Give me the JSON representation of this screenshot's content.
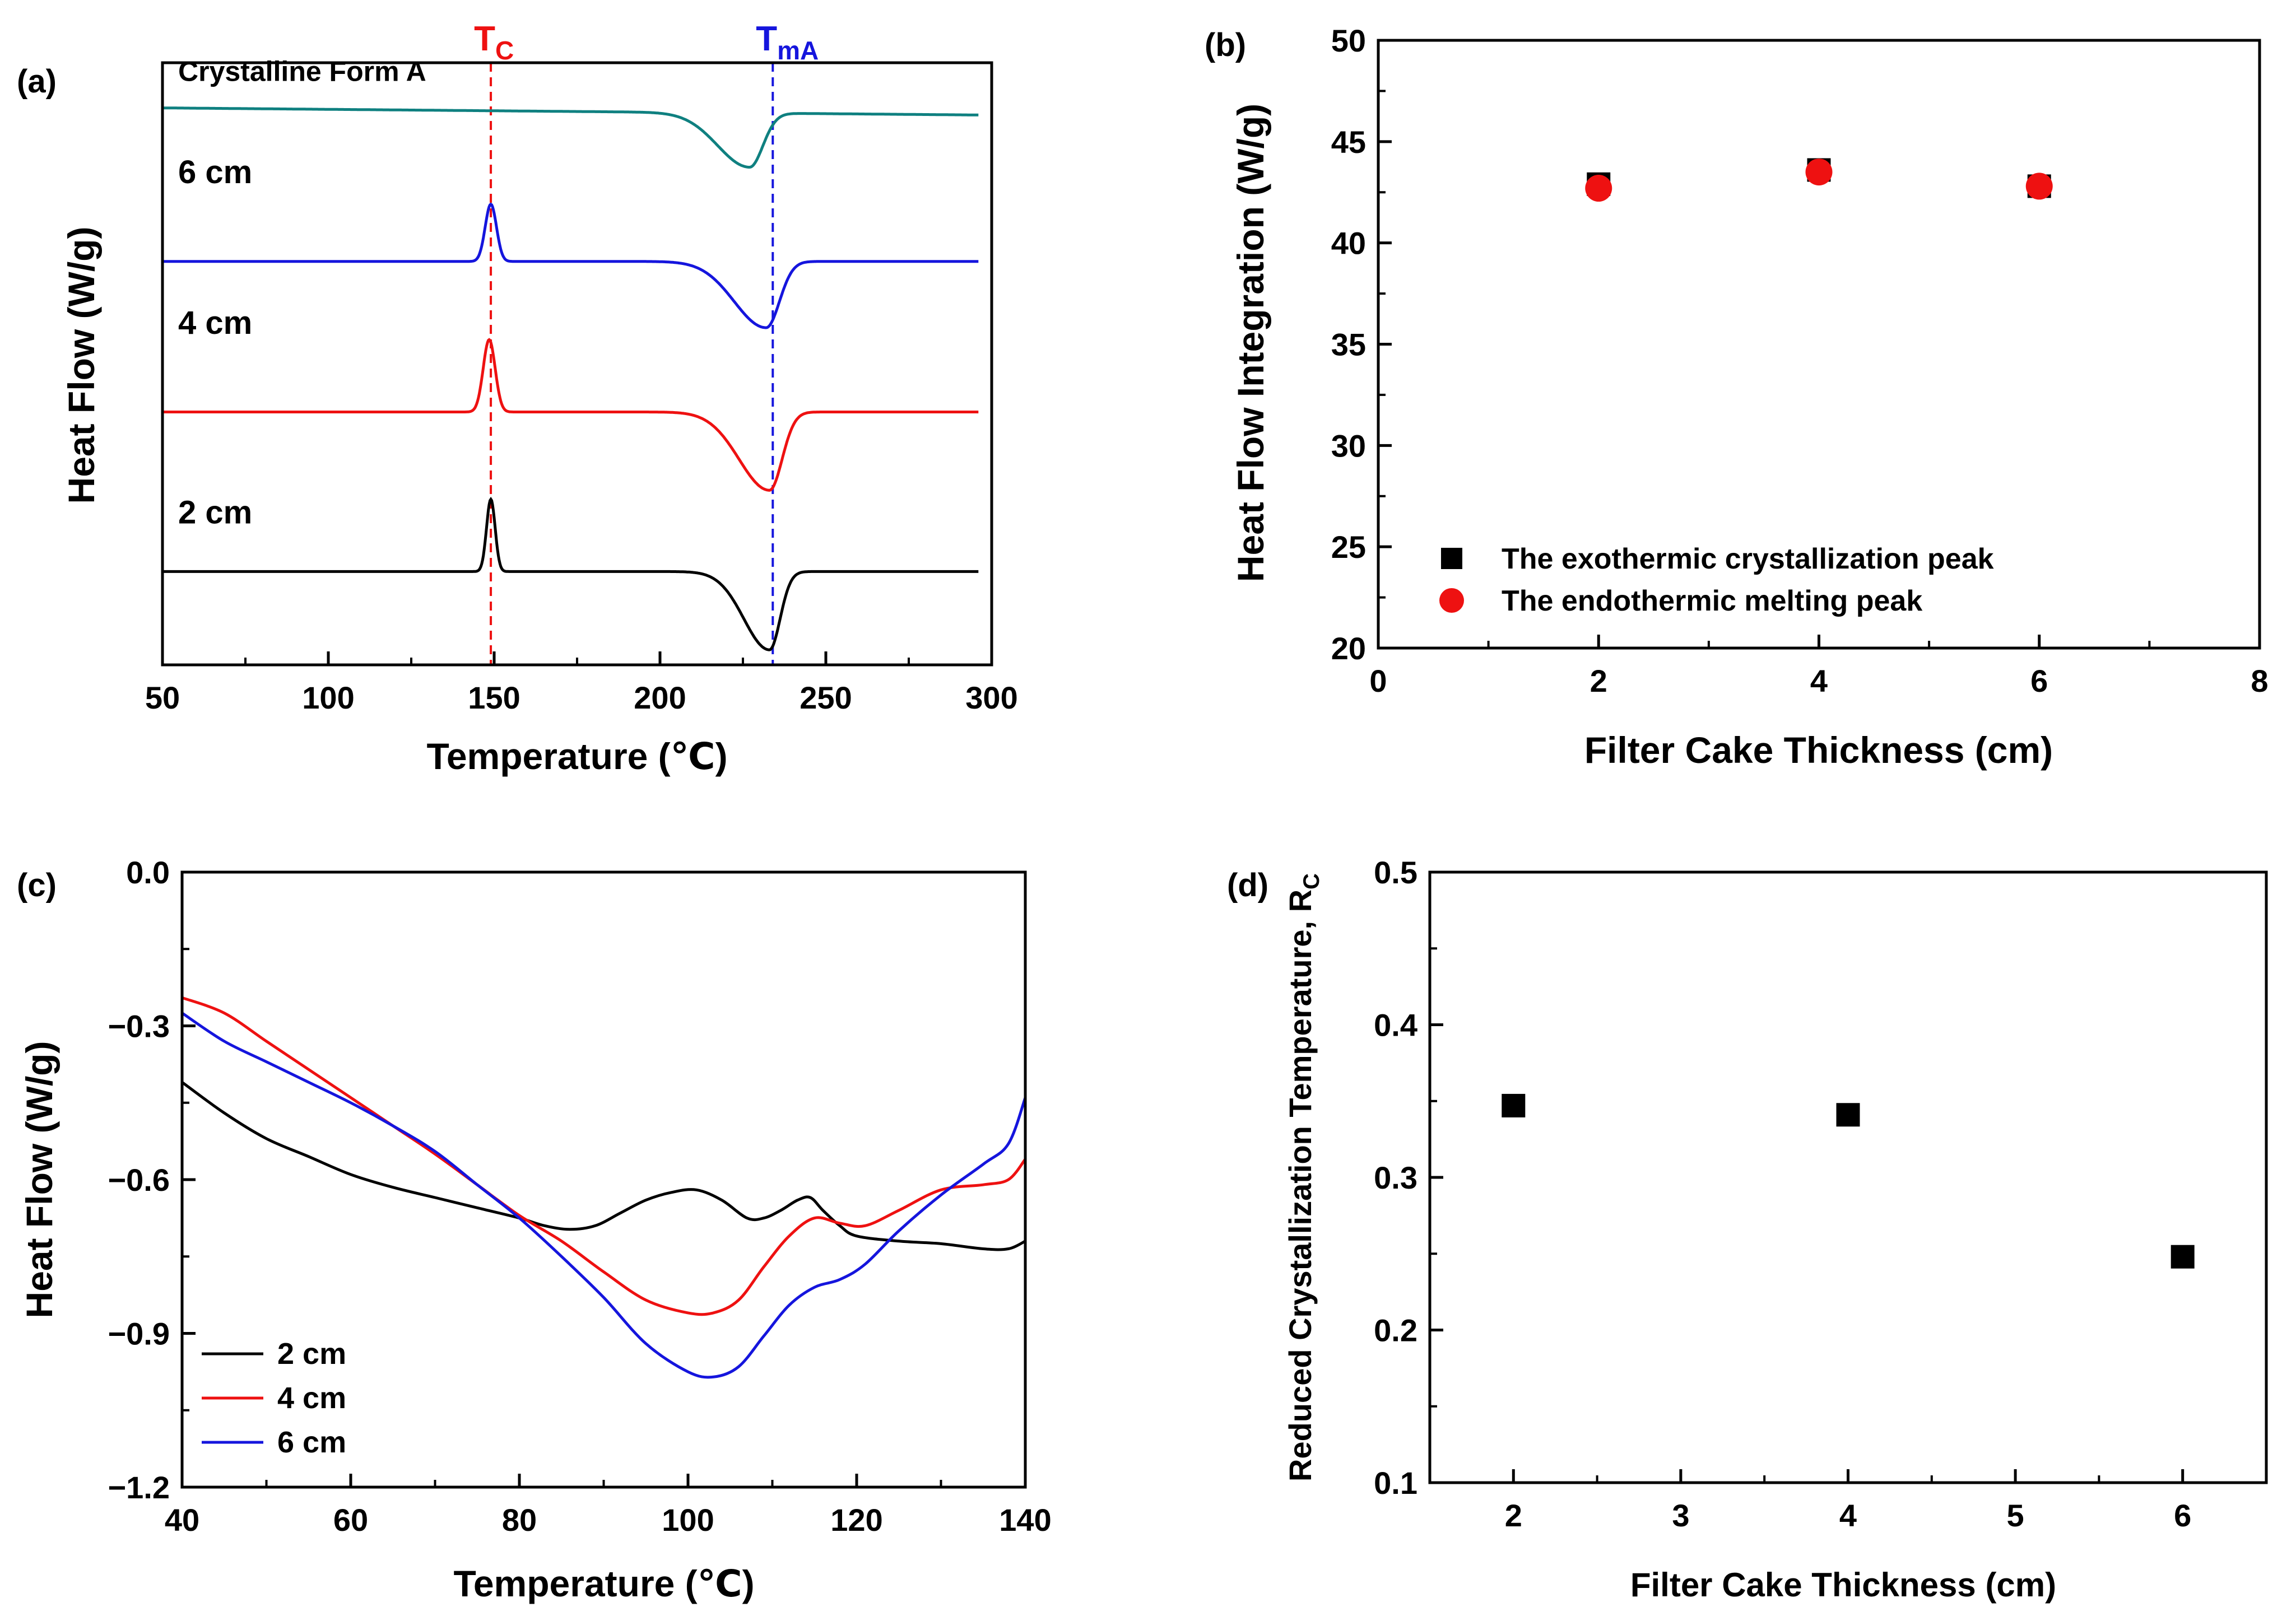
{
  "colors": {
    "black": "#000000",
    "red": "#ee1111",
    "blue": "#1515dd",
    "teal": "#0f8080"
  },
  "chart_data": [
    {
      "panel": "(a)",
      "type": "line",
      "xlabel": "Temperature (℃)",
      "ylabel": "Heat Flow (W/g)",
      "xlim": [
        50,
        300
      ],
      "xticks": [
        50,
        100,
        150,
        200,
        250,
        300
      ],
      "xticks_labels": [
        "50",
        "100",
        "150",
        "200",
        "250",
        "300"
      ],
      "y_ticks_shown": false,
      "vlines": [
        {
          "x": 149,
          "label_main": "T",
          "label_sub": "C",
          "color": "#ee1111"
        },
        {
          "x": 234,
          "label_main": "T",
          "label_sub": "mA",
          "color": "#1515dd"
        }
      ],
      "series": [
        {
          "name": "Crystalline Form A",
          "color": "#0f8080",
          "baseline": 0.925,
          "slope": 0.012,
          "peaks": [
            {
              "x": 227,
              "w": 4.0,
              "h": -0.09,
              "skew": "left"
            }
          ]
        },
        {
          "name": "6 cm",
          "color": "#1515dd",
          "baseline": 0.67,
          "slope": 0.0,
          "peaks": [
            {
              "x": 149,
              "w": 1.7,
              "h": 0.095
            },
            {
              "x": 232,
              "w": 4.0,
              "h": -0.11,
              "skew": "left"
            }
          ]
        },
        {
          "name": "4 cm",
          "color": "#ee1111",
          "baseline": 0.42,
          "slope": 0.0,
          "peaks": [
            {
              "x": 148.5,
              "w": 1.8,
              "h": 0.12
            },
            {
              "x": 233,
              "w": 3.8,
              "h": -0.13,
              "skew": "left"
            }
          ]
        },
        {
          "name": "2 cm",
          "color": "#000000",
          "baseline": 0.155,
          "slope": 0.0,
          "peaks": [
            {
              "x": 149,
              "w": 1.3,
              "h": 0.12
            },
            {
              "x": 233,
              "w": 3.2,
              "h": -0.13,
              "skew": "left"
            }
          ]
        }
      ]
    },
    {
      "panel": "(b)",
      "type": "scatter",
      "xlabel": "Filter Cake Thickness (cm)",
      "ylabel": "Heat Flow Integration (W/g)",
      "xlim": [
        0,
        8
      ],
      "ylim": [
        20,
        50
      ],
      "xticks": [
        0,
        2,
        4,
        6,
        8
      ],
      "xticks_labels": [
        "0",
        "2",
        "4",
        "6",
        "8"
      ],
      "yticks": [
        20,
        25,
        30,
        35,
        40,
        45,
        50
      ],
      "yticks_labels": [
        "20",
        "25",
        "30",
        "35",
        "40",
        "45",
        "50"
      ],
      "legend_position": "bottom-left",
      "series": [
        {
          "name": "The exothermic crystallization peak",
          "marker": "square",
          "color": "#000000",
          "x": [
            2,
            4,
            6
          ],
          "y": [
            42.9,
            43.6,
            42.8
          ]
        },
        {
          "name": "The endothermic melting peak",
          "marker": "circle",
          "color": "#ee1111",
          "x": [
            2,
            4,
            6
          ],
          "y": [
            42.7,
            43.5,
            42.8
          ]
        }
      ]
    },
    {
      "panel": "(c)",
      "type": "line",
      "xlabel": "Temperature (℃)",
      "ylabel": "Heat Flow (W/g)",
      "xlim": [
        40,
        140
      ],
      "ylim": [
        -1.2,
        0.0
      ],
      "xticks": [
        40,
        60,
        80,
        100,
        120,
        140
      ],
      "xticks_labels": [
        "40",
        "60",
        "80",
        "100",
        "120",
        "140"
      ],
      "yticks": [
        -1.2,
        -0.9,
        -0.6,
        -0.3,
        0.0
      ],
      "yticks_labels": [
        "−1.2",
        "−0.9",
        "−0.6",
        "−0.3",
        "0.0"
      ],
      "legend_position": "bottom-left",
      "series": [
        {
          "name": "2 cm",
          "color": "#000000",
          "x": [
            40,
            45,
            50,
            55,
            60,
            65,
            70,
            75,
            80,
            83,
            86,
            89,
            92,
            95,
            98,
            101,
            104,
            107,
            109,
            111,
            113,
            114.5,
            116,
            118,
            120,
            125,
            130,
            135,
            138,
            140
          ],
          "y": [
            -0.41,
            -0.47,
            -0.52,
            -0.555,
            -0.59,
            -0.615,
            -0.635,
            -0.655,
            -0.675,
            -0.69,
            -0.697,
            -0.69,
            -0.665,
            -0.64,
            -0.625,
            -0.62,
            -0.64,
            -0.675,
            -0.675,
            -0.66,
            -0.64,
            -0.635,
            -0.66,
            -0.69,
            -0.71,
            -0.72,
            -0.725,
            -0.735,
            -0.735,
            -0.72
          ]
        },
        {
          "name": "4 cm",
          "color": "#ee1111",
          "x": [
            40,
            45,
            50,
            55,
            60,
            65,
            70,
            75,
            80,
            85,
            90,
            95,
            100,
            103,
            106,
            109,
            112,
            115,
            118,
            121,
            125,
            130,
            135,
            138,
            140
          ],
          "y": [
            -0.245,
            -0.275,
            -0.33,
            -0.385,
            -0.44,
            -0.495,
            -0.55,
            -0.61,
            -0.67,
            -0.72,
            -0.78,
            -0.835,
            -0.86,
            -0.86,
            -0.835,
            -0.77,
            -0.71,
            -0.675,
            -0.685,
            -0.69,
            -0.66,
            -0.62,
            -0.61,
            -0.6,
            -0.56
          ]
        },
        {
          "name": "6 cm",
          "color": "#1515dd",
          "x": [
            40,
            45,
            50,
            55,
            60,
            65,
            70,
            75,
            80,
            85,
            90,
            95,
            100,
            103,
            106,
            109,
            112,
            115,
            118,
            121,
            125,
            130,
            135,
            138,
            140
          ],
          "y": [
            -0.275,
            -0.33,
            -0.37,
            -0.41,
            -0.45,
            -0.495,
            -0.545,
            -0.61,
            -0.675,
            -0.75,
            -0.83,
            -0.92,
            -0.975,
            -0.985,
            -0.965,
            -0.905,
            -0.845,
            -0.81,
            -0.795,
            -0.765,
            -0.7,
            -0.63,
            -0.57,
            -0.53,
            -0.44
          ]
        }
      ]
    },
    {
      "panel": "(d)",
      "type": "scatter",
      "xlabel": "Filter Cake Thickness (cm)",
      "ylabel_main": "Reduced Crystallization Temperature, R",
      "ylabel_sub": "C",
      "xlim": [
        1.5,
        6.5
      ],
      "ylim": [
        0.1,
        0.5
      ],
      "xticks": [
        2,
        3,
        4,
        5,
        6
      ],
      "xticks_labels": [
        "2",
        "3",
        "4",
        "5",
        "6"
      ],
      "yticks": [
        0.1,
        0.2,
        0.3,
        0.4,
        0.5
      ],
      "yticks_labels": [
        "0.1",
        "0.2",
        "0.3",
        "0.4",
        "0.5"
      ],
      "series": [
        {
          "name": "Rc",
          "marker": "square",
          "color": "#000000",
          "x": [
            2,
            4,
            6
          ],
          "y": [
            0.347,
            0.341,
            0.248
          ]
        }
      ]
    }
  ]
}
